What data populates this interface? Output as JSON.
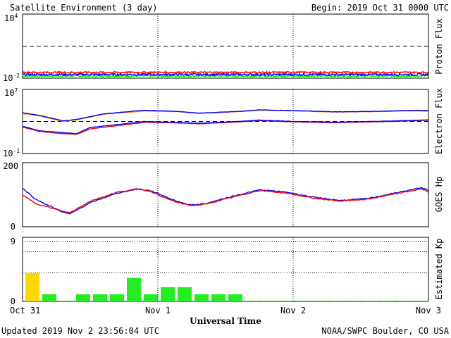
{
  "header": {
    "title": "Satellite Environment (3 day)",
    "begin": "Begin:  2019 Oct 31 0000 UTC"
  },
  "footer": {
    "updated": "Updated 2019 Nov  2 23:56:04 UTC",
    "credit": "NOAA/SWPC Boulder, CO USA"
  },
  "colors": {
    "red": "#ff0000",
    "blue": "#0000ff",
    "green": "#00ee00",
    "orange": "#ff9900",
    "kp_yellow": "#ffd700",
    "kp_green": "#22ee22"
  },
  "chart_data": [
    {
      "type": "line",
      "panel": "proton-flux",
      "ylabel": "Proton Flux",
      "yscale": "log",
      "ylim": [
        0.01,
        10000
      ],
      "yticks": [
        {
          "base": "10",
          "exp": "4",
          "value": 10000
        },
        {
          "base": "10",
          "exp": "-2",
          "value": 0.01
        }
      ],
      "threshold": 10,
      "x_unit": "days since Oct 31 00:00",
      "series": [
        {
          "color": "red",
          "level": 0.035,
          "noise": 0.15
        },
        {
          "color": "blue",
          "level": 0.022,
          "noise": 0.2
        },
        {
          "color": "green",
          "level": 0.016,
          "noise": 0.15
        }
      ]
    },
    {
      "type": "line",
      "panel": "electron-flux",
      "ylabel": "Electron Flux",
      "yscale": "log",
      "ylim": [
        0.1,
        10000000
      ],
      "yticks": [
        {
          "base": "10",
          "exp": "7",
          "value": 10000000
        },
        {
          "base": "10",
          "exp": "-1",
          "value": 0.1
        }
      ],
      "threshold": 1000,
      "series": [
        {
          "color": "orange",
          "points": [
            [
              0,
              10000
            ],
            [
              0.12,
              5000
            ],
            [
              0.3,
              1000
            ],
            [
              0.4,
              1600
            ],
            [
              0.6,
              8000
            ],
            [
              0.9,
              20000
            ],
            [
              1.15,
              17000
            ],
            [
              1.3,
              10000
            ],
            [
              1.6,
              17000
            ],
            [
              1.75,
              25000
            ],
            [
              2.0,
              21000
            ],
            [
              2.3,
              15000
            ],
            [
              2.6,
              17000
            ],
            [
              2.9,
              21000
            ],
            [
              3.0,
              18000
            ]
          ]
        },
        {
          "color": "blue",
          "points": [
            [
              0,
              12000
            ],
            [
              0.12,
              6000
            ],
            [
              0.3,
              1200
            ],
            [
              0.4,
              1800
            ],
            [
              0.6,
              9000
            ],
            [
              0.9,
              25000
            ],
            [
              1.15,
              18000
            ],
            [
              1.3,
              11000
            ],
            [
              1.6,
              18000
            ],
            [
              1.75,
              28000
            ],
            [
              2.0,
              23000
            ],
            [
              2.3,
              16000
            ],
            [
              2.6,
              18000
            ],
            [
              2.9,
              25000
            ],
            [
              3.0,
              23000
            ]
          ]
        },
        {
          "color": "red",
          "points": [
            [
              0,
              200
            ],
            [
              0.12,
              60
            ],
            [
              0.3,
              30
            ],
            [
              0.4,
              25
            ],
            [
              0.5,
              120
            ],
            [
              0.7,
              300
            ],
            [
              0.9,
              800
            ],
            [
              1.1,
              700
            ],
            [
              1.3,
              500
            ],
            [
              1.6,
              900
            ],
            [
              1.75,
              1300
            ],
            [
              2.0,
              900
            ],
            [
              2.3,
              700
            ],
            [
              2.6,
              900
            ],
            [
              2.9,
              1200
            ],
            [
              3.0,
              1400
            ]
          ]
        },
        {
          "color": "blue",
          "points": [
            [
              0,
              250
            ],
            [
              0.12,
              70
            ],
            [
              0.3,
              40
            ],
            [
              0.4,
              30
            ],
            [
              0.5,
              180
            ],
            [
              0.7,
              400
            ],
            [
              0.9,
              1000
            ],
            [
              1.1,
              800
            ],
            [
              1.3,
              600
            ],
            [
              1.6,
              1000
            ],
            [
              1.75,
              1500
            ],
            [
              2.0,
              1000
            ],
            [
              2.3,
              800
            ],
            [
              2.6,
              1000
            ],
            [
              2.9,
              1400
            ],
            [
              3.0,
              1600
            ]
          ]
        }
      ]
    },
    {
      "type": "line",
      "panel": "goes-hp",
      "ylabel": "GOES Hp",
      "ylim": [
        0,
        200
      ],
      "yticks": [
        "200",
        "0"
      ],
      "series": [
        {
          "color": "blue",
          "points": [
            [
              0,
              120
            ],
            [
              0.1,
              85
            ],
            [
              0.3,
              45
            ],
            [
              0.35,
              40
            ],
            [
              0.5,
              75
            ],
            [
              0.7,
              105
            ],
            [
              0.85,
              118
            ],
            [
              0.95,
              112
            ],
            [
              1.05,
              95
            ],
            [
              1.15,
              78
            ],
            [
              1.25,
              68
            ],
            [
              1.35,
              72
            ],
            [
              1.55,
              95
            ],
            [
              1.75,
              115
            ],
            [
              1.95,
              108
            ],
            [
              2.15,
              92
            ],
            [
              2.35,
              82
            ],
            [
              2.55,
              88
            ],
            [
              2.75,
              105
            ],
            [
              2.95,
              122
            ],
            [
              3.0,
              113
            ]
          ]
        },
        {
          "color": "red",
          "points": [
            [
              0,
              98
            ],
            [
              0.1,
              72
            ],
            [
              0.3,
              48
            ],
            [
              0.35,
              44
            ],
            [
              0.5,
              80
            ],
            [
              0.7,
              108
            ],
            [
              0.85,
              118
            ],
            [
              0.95,
              110
            ],
            [
              1.05,
              90
            ],
            [
              1.15,
              75
            ],
            [
              1.25,
              66
            ],
            [
              1.35,
              70
            ],
            [
              1.55,
              92
            ],
            [
              1.75,
              113
            ],
            [
              1.95,
              105
            ],
            [
              2.15,
              89
            ],
            [
              2.35,
              80
            ],
            [
              2.55,
              86
            ],
            [
              2.75,
              102
            ],
            [
              2.95,
              118
            ],
            [
              3.0,
              108
            ]
          ]
        }
      ]
    },
    {
      "type": "bar",
      "panel": "estimated-kp",
      "ylabel": "Estimated Kp",
      "ylim": [
        0,
        9
      ],
      "yticks": [
        "9",
        "0"
      ],
      "gridlines": [
        3,
        6,
        9
      ],
      "bar_width_days": 0.125,
      "values": [
        4,
        1,
        0.1,
        1,
        1,
        1,
        3.3,
        1,
        2,
        2,
        1,
        1,
        1,
        0.1,
        0.1,
        0.1,
        0.1,
        0.1,
        0.1,
        0.1,
        0.1,
        0.1,
        0.1,
        0.1
      ]
    }
  ],
  "x_axis": {
    "label": "Universal Time",
    "ticks": [
      "Oct 31",
      "Nov 1",
      "Nov 2",
      "Nov 3"
    ]
  }
}
